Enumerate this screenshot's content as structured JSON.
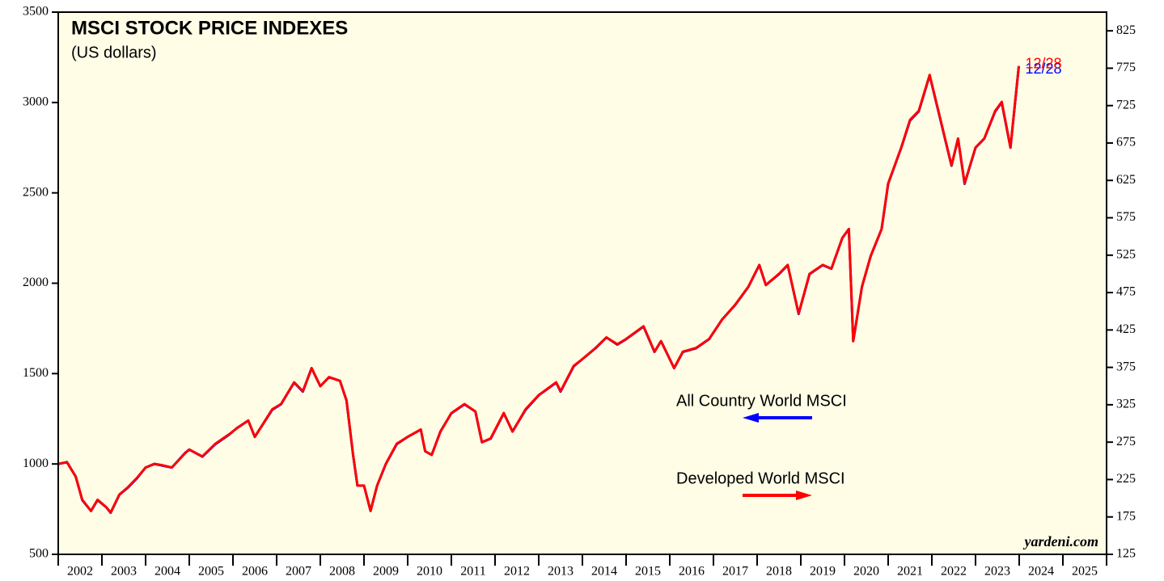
{
  "chart_data": {
    "type": "line",
    "title": "MSCI STOCK PRICE INDEXES",
    "subtitle": "(US dollars)",
    "source": "yardeni.com",
    "xlim": [
      2002,
      2026
    ],
    "xticks": [
      2002,
      2003,
      2004,
      2005,
      2006,
      2007,
      2008,
      2009,
      2010,
      2011,
      2012,
      2013,
      2014,
      2015,
      2016,
      2017,
      2018,
      2019,
      2020,
      2021,
      2022,
      2023,
      2024,
      2025
    ],
    "ylim": [
      500,
      3500
    ],
    "yticks": [
      500,
      1000,
      1500,
      2000,
      2500,
      3000,
      3500
    ],
    "y2lim": [
      125,
      850
    ],
    "y2ticks": [
      125,
      175,
      225,
      275,
      325,
      375,
      425,
      475,
      525,
      575,
      625,
      675,
      725,
      775,
      825
    ],
    "x": [
      2002.0,
      2002.2,
      2002.4,
      2002.55,
      2002.75,
      2002.9,
      2003.1,
      2003.2,
      2003.4,
      2003.6,
      2003.8,
      2004.0,
      2004.2,
      2004.4,
      2004.6,
      2004.9,
      2005.0,
      2005.3,
      2005.6,
      2005.9,
      2006.1,
      2006.35,
      2006.5,
      2006.9,
      2007.1,
      2007.4,
      2007.6,
      2007.8,
      2008.0,
      2008.2,
      2008.45,
      2008.6,
      2008.75,
      2008.85,
      2009.0,
      2009.15,
      2009.3,
      2009.5,
      2009.75,
      2010.0,
      2010.3,
      2010.4,
      2010.55,
      2010.75,
      2011.0,
      2011.3,
      2011.55,
      2011.7,
      2011.9,
      2012.2,
      2012.4,
      2012.7,
      2013.0,
      2013.4,
      2013.5,
      2013.8,
      2014.0,
      2014.3,
      2014.55,
      2014.8,
      2015.0,
      2015.4,
      2015.65,
      2015.8,
      2016.1,
      2016.3,
      2016.6,
      2016.9,
      2017.2,
      2017.5,
      2017.8,
      2018.05,
      2018.2,
      2018.5,
      2018.7,
      2018.95,
      2019.2,
      2019.5,
      2019.7,
      2019.95,
      2020.1,
      2020.2,
      2020.4,
      2020.6,
      2020.85,
      2021.0,
      2021.3,
      2021.5,
      2021.7,
      2021.95,
      2022.0,
      2022.2,
      2022.45,
      2022.6,
      2022.75,
      2023.0,
      2023.2,
      2023.45,
      2023.6,
      2023.8,
      2023.99
    ],
    "series": [
      {
        "name": "All Country World MSCI",
        "color": "#0000ff",
        "axis": "y",
        "end_label": "12/28",
        "values": [
          1000,
          1010,
          930,
          800,
          740,
          800,
          760,
          730,
          830,
          870,
          920,
          980,
          1000,
          990,
          980,
          1060,
          1080,
          1040,
          1110,
          1160,
          1200,
          1240,
          1150,
          1300,
          1330,
          1450,
          1400,
          1530,
          1430,
          1480,
          1460,
          1350,
          1050,
          880,
          880,
          740,
          880,
          1000,
          1110,
          1150,
          1190,
          1070,
          1050,
          1180,
          1280,
          1330,
          1290,
          1120,
          1140,
          1280,
          1180,
          1300,
          1380,
          1450,
          1400,
          1540,
          1580,
          1640,
          1700,
          1660,
          1690,
          1760,
          1620,
          1680,
          1530,
          1620,
          1640,
          1690,
          1800,
          1880,
          1980,
          2100,
          1990,
          2050,
          2100,
          1830,
          2050,
          2100,
          2080,
          2250,
          2300,
          1680,
          1980,
          2150,
          2300,
          2550,
          2750,
          2900,
          2950,
          3150,
          3100,
          2900,
          2650,
          2800,
          2550,
          2750,
          2800,
          2950,
          3000,
          2750,
          3200
        ]
      },
      {
        "name": "Developed World MSCI",
        "color": "#ff0000",
        "axis": "y2",
        "end_label": "12/28",
        "values": [
          246,
          248,
          229,
          198,
          183,
          198,
          188,
          181,
          205,
          215,
          227,
          241,
          246,
          244,
          241,
          260,
          265,
          256,
          273,
          285,
          294,
          304,
          282,
          319,
          326,
          355,
          343,
          374,
          350,
          362,
          357,
          331,
          258,
          217,
          217,
          183,
          217,
          246,
          273,
          282,
          292,
          263,
          258,
          289,
          314,
          326,
          316,
          275,
          280,
          314,
          289,
          319,
          338,
          355,
          343,
          377,
          386,
          401,
          415,
          406,
          413,
          430,
          396,
          410,
          374,
          396,
          401,
          413,
          439,
          459,
          483,
          512,
          485,
          500,
          512,
          447,
          500,
          512,
          507,
          548,
          560,
          410,
          483,
          524,
          560,
          621,
          669,
          706,
          718,
          766,
          754,
          706,
          645,
          681,
          621,
          669,
          681,
          718,
          730,
          669,
          778
        ]
      }
    ]
  }
}
